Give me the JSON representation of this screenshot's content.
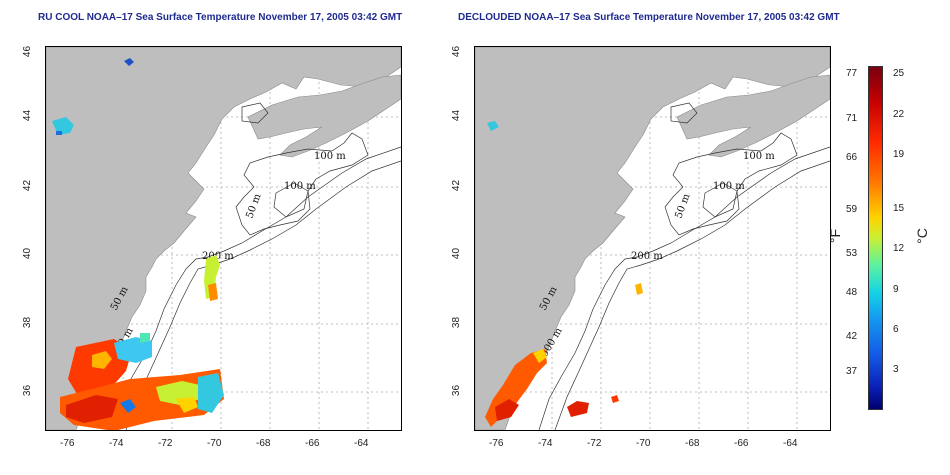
{
  "left_panel": {
    "title": "RU COOL NOAA–17 Sea Surface Temperature November 17, 2005 03:42 GMT"
  },
  "right_panel": {
    "title": "DECLOUDED NOAA–17 Sea Surface Temperature November 17, 2005 03:42 GMT"
  },
  "map": {
    "x_ticks": [
      "-76",
      "-74",
      "-72",
      "-70",
      "-68",
      "-66",
      "-64"
    ],
    "y_ticks": [
      "46",
      "44",
      "42",
      "40",
      "38",
      "36"
    ],
    "land_color": "#bebebe",
    "ocean_color": "#ffffff",
    "contour_labels": [
      "100 m",
      "100 m",
      "50 m",
      "200 m",
      "50 m",
      "2000 m"
    ]
  },
  "colorbar": {
    "fahrenheit_labels": [
      "77",
      "71",
      "66",
      "59",
      "53",
      "48",
      "42",
      "37"
    ],
    "celsius_labels": [
      "25",
      "22",
      "19",
      "15",
      "12",
      "9",
      "6",
      "3"
    ],
    "left_unit": "°F",
    "right_unit": "°C"
  }
}
